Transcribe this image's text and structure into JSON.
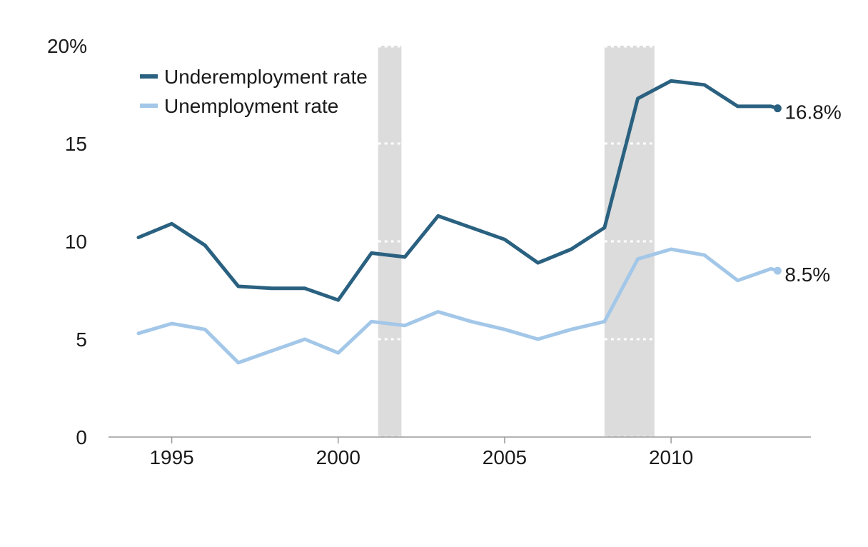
{
  "chart_data": {
    "type": "line",
    "x": [
      1994,
      1995,
      1996,
      1997,
      1998,
      1999,
      2000,
      2001,
      2002,
      2003,
      2004,
      2005,
      2006,
      2007,
      2008,
      2009,
      2010,
      2011,
      2012,
      2013,
      2013.2
    ],
    "series": [
      {
        "name": "Underemployment rate",
        "color": "#2a6180",
        "values": [
          10.2,
          10.9,
          9.8,
          7.7,
          7.6,
          7.6,
          7.0,
          9.4,
          9.2,
          11.3,
          10.7,
          10.1,
          8.9,
          9.6,
          10.7,
          17.3,
          18.2,
          18.0,
          16.9,
          16.9,
          16.8
        ],
        "end_label": "16.8%"
      },
      {
        "name": "Unemployment rate",
        "color": "#a3c7e8",
        "values": [
          5.3,
          5.8,
          5.5,
          3.8,
          4.4,
          5.0,
          4.3,
          5.9,
          5.7,
          6.4,
          5.9,
          5.5,
          5.0,
          5.5,
          5.9,
          9.1,
          9.6,
          9.3,
          8.0,
          8.6,
          8.5
        ],
        "end_label": "8.5%"
      }
    ],
    "xlim": [
      1993.1,
      2014.2
    ],
    "ylim": [
      0,
      20
    ],
    "x_ticks": [
      1995,
      2000,
      2005,
      2010
    ],
    "x_tick_labels": [
      "1995",
      "2000",
      "2005",
      "2010"
    ],
    "y_ticks": [
      0,
      5,
      10,
      15,
      20
    ],
    "y_tick_labels": [
      "0",
      "5",
      "10",
      "15",
      "20%"
    ],
    "recessions": [
      {
        "start": 2001.2,
        "end": 2001.9
      },
      {
        "start": 2008.0,
        "end": 2009.5
      }
    ],
    "recession_color": "#dcdcdc",
    "grid": "dotted lines visible only inside recession shading",
    "legend_position": "top-left",
    "title": "",
    "xlabel": "",
    "ylabel": ""
  }
}
